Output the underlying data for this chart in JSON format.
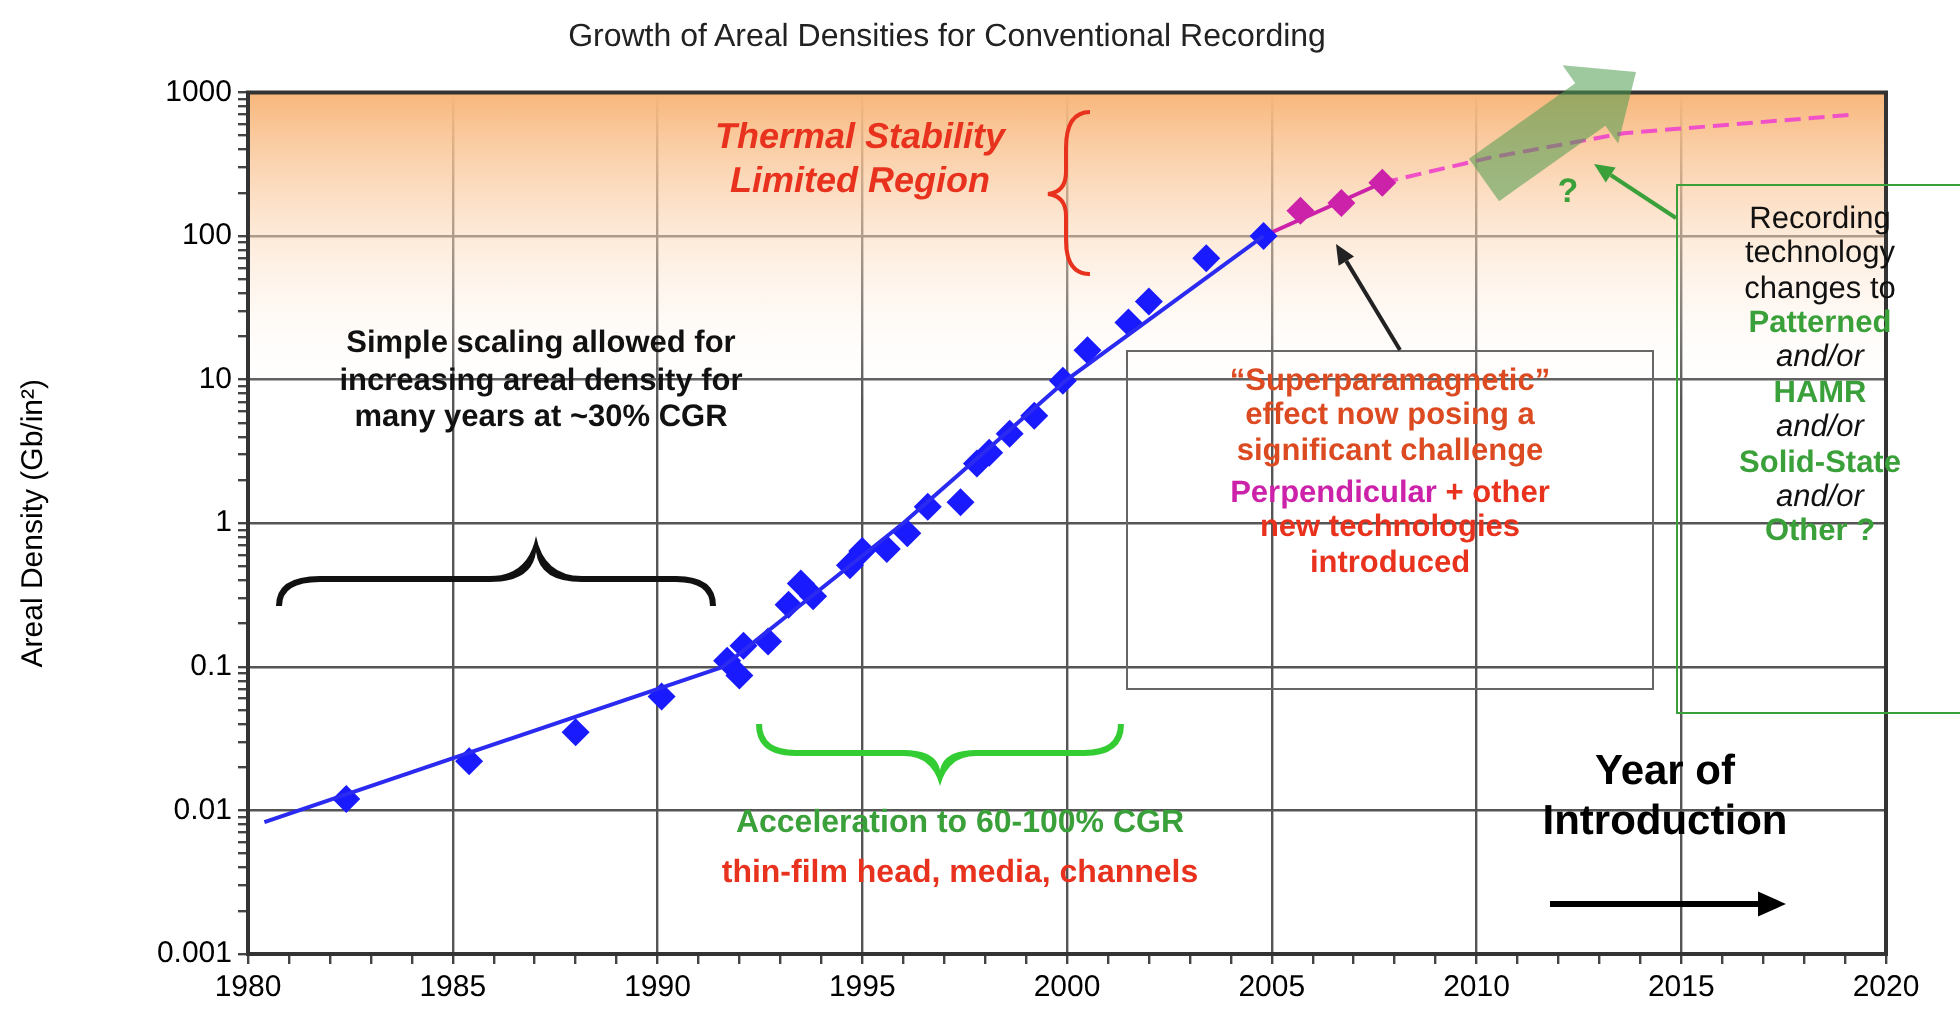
{
  "chart_data": {
    "type": "scatter",
    "title": "Growth of Areal Densities for Conventional Recording",
    "ylabel": "Areal Density (Gb/in²)",
    "log": "y",
    "grid": true,
    "legend": false,
    "xlim": [
      1980,
      2020
    ],
    "xticks": [
      1980,
      {
        "value": 1981,
        "label": null
      },
      {
        "value": 1982,
        "label": null
      },
      {
        "value": 1983,
        "label": null
      },
      {
        "value": 1984,
        "label": null
      },
      1985,
      {
        "value": 1986,
        "label": null
      },
      {
        "value": 1987,
        "label": null
      },
      {
        "value": 1988,
        "label": null
      },
      {
        "value": 1989,
        "label": null
      },
      1990,
      {
        "value": 1991,
        "label": null
      },
      {
        "value": 1992,
        "label": null
      },
      {
        "value": 1993,
        "label": null
      },
      {
        "value": 1994,
        "label": null
      },
      1995,
      {
        "value": 1996,
        "label": null
      },
      {
        "value": 1997,
        "label": null
      },
      {
        "value": 1998,
        "label": null
      },
      {
        "value": 1999,
        "label": null
      },
      2000,
      {
        "value": 2001,
        "label": null
      },
      {
        "value": 2002,
        "label": null
      },
      {
        "value": 2003,
        "label": null
      },
      {
        "value": 2004,
        "label": null
      },
      2005,
      {
        "value": 2006,
        "label": null
      },
      {
        "value": 2007,
        "label": null
      },
      {
        "value": 2008,
        "label": null
      },
      {
        "value": 2009,
        "label": null
      },
      2010,
      {
        "value": 2011,
        "label": null
      },
      {
        "value": 2012,
        "label": null
      },
      {
        "value": 2013,
        "label": null
      },
      {
        "value": 2014,
        "label": null
      },
      2015,
      {
        "value": 2016,
        "label": null
      },
      {
        "value": 2017,
        "label": null
      },
      {
        "value": 2018,
        "label": null
      },
      {
        "value": 2019,
        "label": null
      },
      2020
    ],
    "ylim": [
      0.001,
      1000
    ],
    "yticks": [
      0.001,
      {
        "value": 0.002,
        "label": null
      },
      {
        "value": 0.003,
        "label": null
      },
      {
        "value": 0.004,
        "label": null
      },
      {
        "value": 0.005,
        "label": null
      },
      {
        "value": 0.006,
        "label": null
      },
      {
        "value": 0.007,
        "label": null
      },
      {
        "value": 0.008,
        "label": null
      },
      {
        "value": 0.009,
        "label": null
      },
      0.01,
      {
        "value": 0.02,
        "label": null
      },
      {
        "value": 0.03,
        "label": null
      },
      {
        "value": 0.04,
        "label": null
      },
      {
        "value": 0.05,
        "label": null
      },
      {
        "value": 0.06,
        "label": null
      },
      {
        "value": 0.07,
        "label": null
      },
      {
        "value": 0.08,
        "label": null
      },
      {
        "value": 0.09,
        "label": null
      },
      0.1,
      {
        "value": 0.2,
        "label": null
      },
      {
        "value": 0.3,
        "label": null
      },
      {
        "value": 0.4,
        "label": null
      },
      {
        "value": 0.5,
        "label": null
      },
      {
        "value": 0.6,
        "label": null
      },
      {
        "value": 0.7,
        "label": null
      },
      {
        "value": 0.8,
        "label": null
      },
      {
        "value": 0.9,
        "label": null
      },
      1,
      {
        "value": 2,
        "label": null
      },
      {
        "value": 3,
        "label": null
      },
      {
        "value": 4,
        "label": null
      },
      {
        "value": 5,
        "label": null
      },
      {
        "value": 6,
        "label": null
      },
      {
        "value": 7,
        "label": null
      },
      {
        "value": 8,
        "label": null
      },
      {
        "value": 9,
        "label": null
      },
      10,
      {
        "value": 20,
        "label": null
      },
      {
        "value": 30,
        "label": null
      },
      {
        "value": 40,
        "label": null
      },
      {
        "value": 50,
        "label": null
      },
      {
        "value": 60,
        "label": null
      },
      {
        "value": 70,
        "label": null
      },
      {
        "value": 80,
        "label": null
      },
      {
        "value": 90,
        "label": null
      },
      100,
      {
        "value": 200,
        "label": null
      },
      {
        "value": 300,
        "label": null
      },
      {
        "value": 400,
        "label": null
      },
      {
        "value": 500,
        "label": null
      },
      {
        "value": 600,
        "label": null
      },
      {
        "value": 700,
        "label": null
      },
      {
        "value": 800,
        "label": null
      },
      {
        "value": 900,
        "label": null
      },
      1000
    ],
    "bands": [
      {
        "axis": "y",
        "from": 7,
        "to": 1000,
        "color": "#f8b67a"
      }
    ],
    "series": [
      {
        "type": "line",
        "color": "#2a2af0",
        "marker": "none",
        "line_style": "solid",
        "x": [
          1980.4,
          1991.6,
          1996,
          2000,
          2004.8
        ],
        "values": [
          0.0083,
          0.1,
          1,
          10,
          100
        ]
      },
      {
        "type": "scatter",
        "color": "#1a1aff",
        "marker": "diamond",
        "x": [
          1982.4,
          1985.4,
          1988.0,
          1990.1,
          1991.7,
          1992.0,
          1992.1,
          1992.7,
          1993.2,
          1993.5,
          1993.8,
          1994.7,
          1995.0,
          1995.6,
          1996.1,
          1996.6,
          1997.4,
          1997.8,
          1998.1,
          1998.6,
          1999.2,
          1999.9,
          2000.5,
          2001.5,
          2002.0,
          2003.4,
          2004.8
        ],
        "values": [
          0.012,
          0.022,
          0.035,
          0.062,
          0.11,
          0.087,
          0.14,
          0.15,
          0.27,
          0.38,
          0.31,
          0.51,
          0.64,
          0.66,
          0.85,
          1.3,
          1.4,
          2.6,
          3.1,
          4.2,
          5.6,
          9.8,
          16,
          25,
          35,
          70,
          100
        ]
      },
      {
        "type": "line",
        "color": "#cc22aa",
        "marker": "none",
        "line_style": "solid",
        "x": [
          2004.8,
          2007.7
        ],
        "values": [
          100,
          235
        ]
      },
      {
        "type": "scatter",
        "color": "#cc22aa",
        "marker": "diamond",
        "x": [
          2005.7,
          2006.7,
          2007.7
        ],
        "values": [
          150,
          170,
          235
        ]
      },
      {
        "type": "line",
        "color": "#f050c8",
        "marker": "none",
        "line_style": "dashed",
        "x": [
          2007.7,
          2010.3,
          2013.6,
          2019.2
        ],
        "values": [
          235,
          350,
          520,
          700
        ]
      }
    ],
    "annotations": [
      "Thermal Stability Limited Region",
      "Simple scaling allowed for increasing areal density for many years at ~30% CGR",
      "Acceleration to 60-100% CGR",
      "thin-film head, media, channels",
      "“Superparamagnetic” effect now posing a significant challenge",
      "Perpendicular",
      "+ other new technologies introduced",
      "?",
      "Recording technology changes to",
      "Patterned",
      "and/or",
      "HAMR",
      "and/or",
      "Solid-State",
      "and/or",
      "Other ?",
      "Year of Introduction"
    ]
  }
}
